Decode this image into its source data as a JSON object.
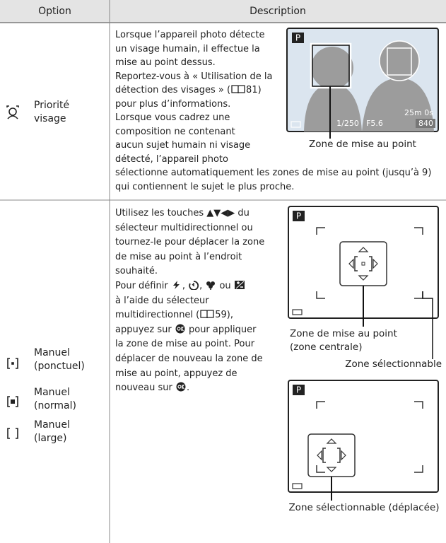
{
  "table": {
    "headers": [
      "Option",
      "Description"
    ],
    "rows": [
      {
        "options": [
          "Priorité visage"
        ],
        "description": [
          [
            "Lorsque l’appareil photo détecte"
          ],
          [
            "un visage humain, il effectue la"
          ],
          [
            "mise au point dessus."
          ],
          [
            "Reportez-vous à « Utilisation de la"
          ],
          [
            "détection des visages » (",
            "81)"
          ],
          [
            "pour plus d’informations."
          ],
          [
            "Lorsque vous cadrez une"
          ],
          [
            "composition ne contenant"
          ],
          [
            "aucun sujet humain ni visage"
          ],
          [
            "détecté, l’appareil photo"
          ],
          [
            "sélectionne automatiquement les zones de mise au point (jusqu’à 9)"
          ],
          [
            "qui contiennent le sujet le plus proche."
          ]
        ],
        "figures": [
          {
            "screen": {
              "mode": "P",
              "shutter": "1/250",
              "aperture": "F5.6",
              "remaining_time": "25m 0s",
              "remaining_shots": "840"
            },
            "captions": [
              "Zone de mise au point"
            ]
          }
        ]
      },
      {
        "options": [
          "Manuel (ponctuel)",
          "Manuel (normal)",
          "Manuel (large)"
        ],
        "description": [
          [
            "Utilisez les touches ▲▼◀▶ du"
          ],
          [
            "sélecteur multidirectionnel ou"
          ],
          [
            "tournez-le pour déplacer la zone"
          ],
          [
            "de mise au point à l’endroit"
          ],
          [
            "souhaité."
          ],
          [
            "Pour définir ",
            ", ",
            ", ",
            " ou "
          ],
          [
            "à l’aide du sélecteur"
          ],
          [
            "multidirectionnel (",
            "59),"
          ],
          [
            "appuyez sur ",
            " pour appliquer"
          ],
          [
            "la zone de mise au point. Pour"
          ],
          [
            "déplacer de nouveau la zone de"
          ],
          [
            "mise au point, appuyez de"
          ],
          [
            "nouveau sur ",
            "."
          ]
        ],
        "figures": [
          {
            "screen": {
              "mode": "P"
            },
            "captions": [
              "Zone de mise au point (zone centrale)",
              "Zone sélectionnable"
            ]
          },
          {
            "screen": {
              "mode": "P"
            },
            "captions": [
              "Zone sélectionnable (déplacée)"
            ]
          }
        ]
      }
    ]
  }
}
